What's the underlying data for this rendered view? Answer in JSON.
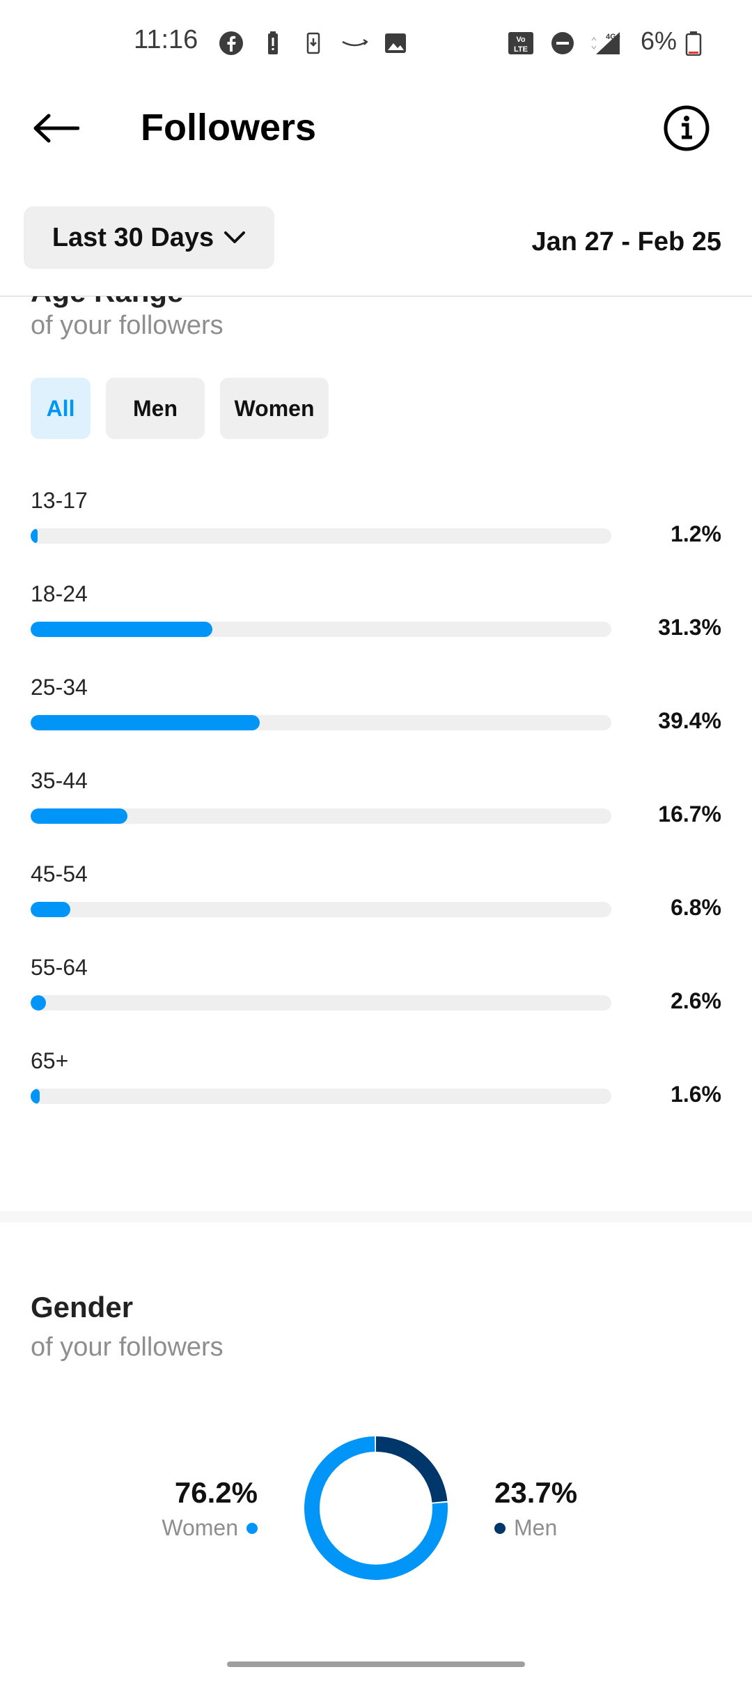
{
  "status_bar": {
    "time": "11:16",
    "battery_percent": "6%",
    "network": "4G+",
    "volte": "Vo LTE"
  },
  "header": {
    "title": "Followers"
  },
  "filter": {
    "range_label": "Last 30 Days",
    "date_range": "Jan 27 - Feb 25"
  },
  "age_section": {
    "title": "Age Range",
    "subtitle": "of your followers",
    "tabs": [
      {
        "label": "All",
        "active": true
      },
      {
        "label": "Men",
        "active": false
      },
      {
        "label": "Women",
        "active": false
      }
    ],
    "rows": [
      {
        "label": "13-17",
        "value": 1.2,
        "display": "1.2%"
      },
      {
        "label": "18-24",
        "value": 31.3,
        "display": "31.3%"
      },
      {
        "label": "25-34",
        "value": 39.4,
        "display": "39.4%"
      },
      {
        "label": "35-44",
        "value": 16.7,
        "display": "16.7%"
      },
      {
        "label": "45-54",
        "value": 6.8,
        "display": "6.8%"
      },
      {
        "label": "55-64",
        "value": 2.6,
        "display": "2.6%"
      },
      {
        "label": "65+",
        "value": 1.6,
        "display": "1.6%"
      }
    ]
  },
  "gender_section": {
    "title": "Gender",
    "subtitle": "of your followers",
    "women": {
      "value": 76.2,
      "display": "76.2%",
      "label": "Women",
      "color": "#0095f6"
    },
    "men": {
      "value": 23.7,
      "display": "23.7%",
      "label": "Men",
      "color": "#00376b"
    }
  },
  "chart_data": [
    {
      "type": "bar",
      "orientation": "horizontal",
      "categories": [
        "13-17",
        "18-24",
        "25-34",
        "35-44",
        "45-54",
        "55-64",
        "65+"
      ],
      "values": [
        1.2,
        31.3,
        39.4,
        16.7,
        6.8,
        2.6,
        1.6
      ],
      "bar_color": "#0095f6",
      "track_color": "#efefef"
    },
    {
      "type": "pie",
      "style": "donut",
      "categories": [
        "Women",
        "Men"
      ],
      "values": [
        76.2,
        23.7
      ],
      "colors": [
        "#0095f6",
        "#00376b"
      ]
    }
  ],
  "colors": {
    "accent": "#0095f6",
    "dark_accent": "#00376b",
    "muted_text": "#8e8e8e"
  }
}
